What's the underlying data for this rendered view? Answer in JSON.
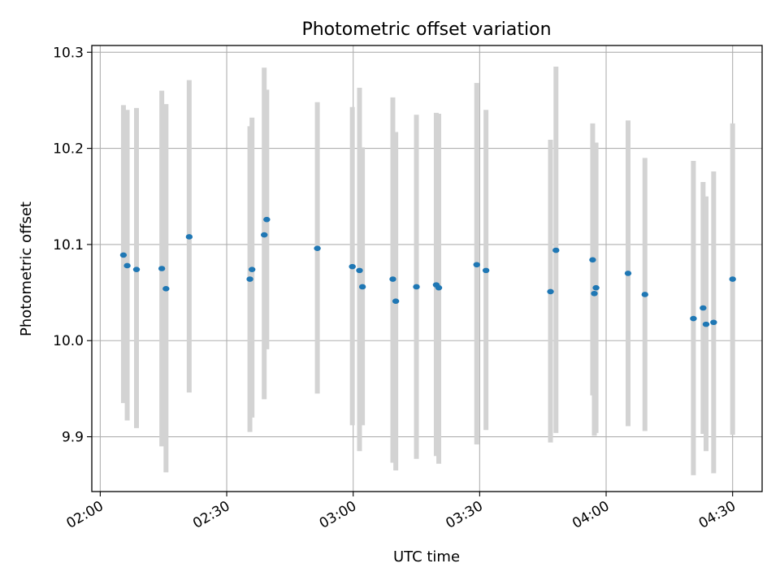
{
  "chart_data": {
    "type": "scatter",
    "title": "Photometric offset variation",
    "xlabel": "UTC time",
    "ylabel": "Photometric offset",
    "xlim_minutes": [
      118,
      277
    ],
    "ylim": [
      9.843,
      10.307
    ],
    "grid": true,
    "x_ticks": [
      {
        "minutes": 120,
        "label": "02:00"
      },
      {
        "minutes": 150,
        "label": "02:30"
      },
      {
        "minutes": 180,
        "label": "03:00"
      },
      {
        "minutes": 210,
        "label": "03:30"
      },
      {
        "minutes": 240,
        "label": "04:00"
      },
      {
        "minutes": 270,
        "label": "04:30"
      }
    ],
    "y_ticks": [
      {
        "value": 9.9,
        "label": "9.9"
      },
      {
        "value": 10.0,
        "label": "10.0"
      },
      {
        "value": 10.1,
        "label": "10.1"
      },
      {
        "value": 10.2,
        "label": "10.2"
      },
      {
        "value": 10.3,
        "label": "10.3"
      }
    ],
    "series": [
      {
        "name": "offset",
        "marker_color": "#1f77b4",
        "errorbar_color": "#d3d3d3",
        "points": [
          {
            "t": 125.5,
            "y": 10.089,
            "lo": 9.935,
            "hi": 10.245
          },
          {
            "t": 126.4,
            "y": 10.078,
            "lo": 9.917,
            "hi": 10.24
          },
          {
            "t": 128.6,
            "y": 10.074,
            "lo": 9.909,
            "hi": 10.242
          },
          {
            "t": 134.6,
            "y": 10.075,
            "lo": 9.89,
            "hi": 10.26
          },
          {
            "t": 135.6,
            "y": 10.054,
            "lo": 9.863,
            "hi": 10.246
          },
          {
            "t": 141.1,
            "y": 10.108,
            "lo": 9.946,
            "hi": 10.271
          },
          {
            "t": 155.5,
            "y": 10.064,
            "lo": 9.905,
            "hi": 10.223
          },
          {
            "t": 156.0,
            "y": 10.074,
            "lo": 9.92,
            "hi": 10.232
          },
          {
            "t": 158.9,
            "y": 10.11,
            "lo": 9.939,
            "hi": 10.284
          },
          {
            "t": 159.5,
            "y": 10.126,
            "lo": 9.991,
            "hi": 10.261
          },
          {
            "t": 171.5,
            "y": 10.096,
            "lo": 9.945,
            "hi": 10.248
          },
          {
            "t": 179.8,
            "y": 10.077,
            "lo": 9.912,
            "hi": 10.243
          },
          {
            "t": 181.5,
            "y": 10.073,
            "lo": 9.885,
            "hi": 10.263
          },
          {
            "t": 182.2,
            "y": 10.056,
            "lo": 9.912,
            "hi": 10.201
          },
          {
            "t": 189.4,
            "y": 10.064,
            "lo": 9.873,
            "hi": 10.253
          },
          {
            "t": 190.1,
            "y": 10.041,
            "lo": 9.865,
            "hi": 10.217
          },
          {
            "t": 195.0,
            "y": 10.056,
            "lo": 9.877,
            "hi": 10.235
          },
          {
            "t": 199.7,
            "y": 10.058,
            "lo": 9.88,
            "hi": 10.237
          },
          {
            "t": 200.3,
            "y": 10.055,
            "lo": 9.872,
            "hi": 10.236
          },
          {
            "t": 209.3,
            "y": 10.079,
            "lo": 9.892,
            "hi": 10.268
          },
          {
            "t": 211.5,
            "y": 10.073,
            "lo": 9.907,
            "hi": 10.24
          },
          {
            "t": 226.8,
            "y": 10.051,
            "lo": 9.894,
            "hi": 10.209
          },
          {
            "t": 228.1,
            "y": 10.094,
            "lo": 9.904,
            "hi": 10.285
          },
          {
            "t": 236.8,
            "y": 10.084,
            "lo": 9.943,
            "hi": 10.226
          },
          {
            "t": 237.2,
            "y": 10.049,
            "lo": 9.901,
            "hi": 10.197
          },
          {
            "t": 237.6,
            "y": 10.055,
            "lo": 9.904,
            "hi": 10.206
          },
          {
            "t": 245.2,
            "y": 10.07,
            "lo": 9.911,
            "hi": 10.229
          },
          {
            "t": 249.2,
            "y": 10.048,
            "lo": 9.906,
            "hi": 10.19
          },
          {
            "t": 260.7,
            "y": 10.023,
            "lo": 9.86,
            "hi": 10.187
          },
          {
            "t": 263.0,
            "y": 10.034,
            "lo": 9.903,
            "hi": 10.165
          },
          {
            "t": 263.7,
            "y": 10.017,
            "lo": 9.885,
            "hi": 10.15
          },
          {
            "t": 265.5,
            "y": 10.019,
            "lo": 9.862,
            "hi": 10.176
          },
          {
            "t": 270.0,
            "y": 10.064,
            "lo": 9.902,
            "hi": 10.226
          }
        ]
      }
    ]
  }
}
